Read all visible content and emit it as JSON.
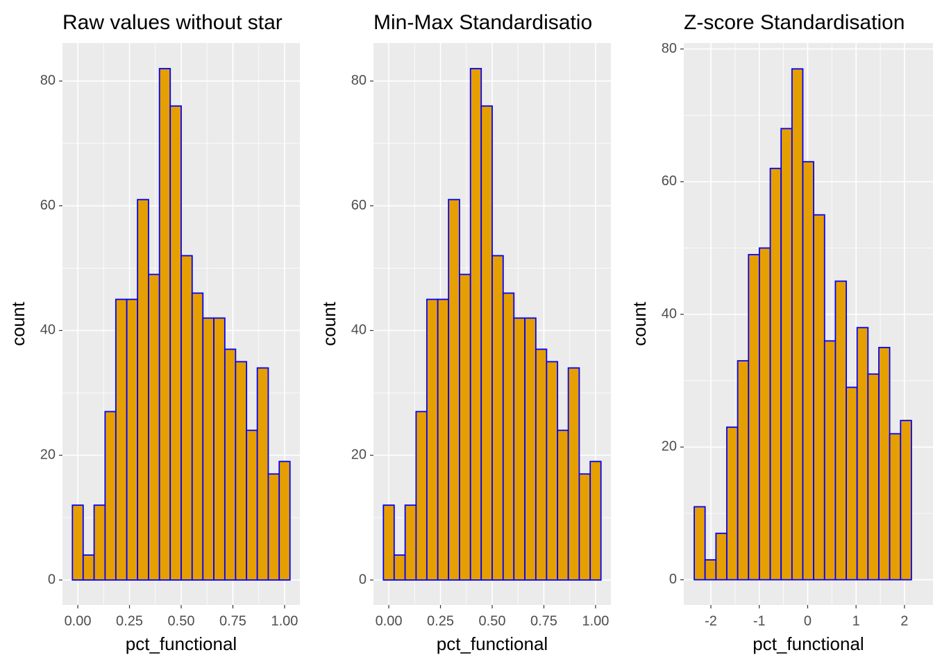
{
  "chart_data": [
    {
      "type": "histogram",
      "title": "Raw values without star",
      "x_label": "pct_functional",
      "y_label": "count",
      "bins": [
        -0.026,
        0.026,
        0.079,
        0.132,
        0.184,
        0.237,
        0.289,
        0.342,
        0.395,
        0.447,
        0.5,
        0.553,
        0.605,
        0.658,
        0.711,
        0.763,
        0.816,
        0.868,
        0.921,
        0.974,
        1.026
      ],
      "values": [
        12,
        4,
        12,
        27,
        45,
        45,
        61,
        49,
        82,
        76,
        52,
        46,
        42,
        42,
        37,
        35,
        24,
        34,
        17,
        19
      ],
      "color": "#e69f00",
      "edge_color": "#0000ff",
      "xlim": [
        -0.074,
        1.074
      ],
      "xticks": [
        {
          "value": 0,
          "label": "0.00"
        },
        {
          "value": 0.25,
          "label": "0.25"
        },
        {
          "value": 0.5,
          "label": "0.50"
        },
        {
          "value": 0.75,
          "label": "0.75"
        },
        {
          "value": 1,
          "label": "1.00"
        }
      ],
      "ylim": [
        -4.0,
        86.1
      ],
      "yticks": [
        0,
        20,
        40,
        60,
        80
      ],
      "grid": true
    },
    {
      "type": "histogram",
      "title": "Min-Max Standardisatio",
      "x_label": "pct_functional",
      "y_label": "count",
      "bins": [
        -0.026,
        0.026,
        0.079,
        0.132,
        0.184,
        0.237,
        0.289,
        0.342,
        0.395,
        0.447,
        0.5,
        0.553,
        0.605,
        0.658,
        0.711,
        0.763,
        0.816,
        0.868,
        0.921,
        0.974,
        1.026
      ],
      "values": [
        12,
        4,
        12,
        27,
        45,
        45,
        61,
        49,
        82,
        76,
        52,
        46,
        42,
        42,
        37,
        35,
        24,
        34,
        17,
        19
      ],
      "color": "#e69f00",
      "edge_color": "#0000ff",
      "xlim": [
        -0.074,
        1.074
      ],
      "xticks": [
        {
          "value": 0,
          "label": "0.00"
        },
        {
          "value": 0.25,
          "label": "0.25"
        },
        {
          "value": 0.5,
          "label": "0.50"
        },
        {
          "value": 0.75,
          "label": "0.75"
        },
        {
          "value": 1,
          "label": "1.00"
        }
      ],
      "ylim": [
        -4.0,
        86.1
      ],
      "yticks": [
        0,
        20,
        40,
        60,
        80
      ],
      "grid": true
    },
    {
      "type": "histogram",
      "title": "Z-score Standardisation",
      "x_label": "pct_functional",
      "y_label": "count",
      "bins": [
        -2.344,
        -2.12,
        -1.895,
        -1.671,
        -1.446,
        -1.222,
        -0.998,
        -0.773,
        -0.549,
        -0.324,
        -0.1,
        0.124,
        0.349,
        0.573,
        0.798,
        1.022,
        1.246,
        1.471,
        1.695,
        1.92,
        2.144
      ],
      "values": [
        11,
        3,
        7,
        23,
        33,
        49,
        50,
        62,
        68,
        77,
        63,
        55,
        36,
        45,
        29,
        38,
        31,
        35,
        22,
        24
      ],
      "color": "#e69f00",
      "edge_color": "#0000ff",
      "xlim": [
        -2.56,
        2.59
      ],
      "xticks": [
        -2,
        -1,
        0,
        1,
        2
      ],
      "ylim": [
        -3.8,
        80.9
      ],
      "yticks": [
        0,
        20,
        40,
        60,
        80
      ],
      "grid": true
    }
  ]
}
